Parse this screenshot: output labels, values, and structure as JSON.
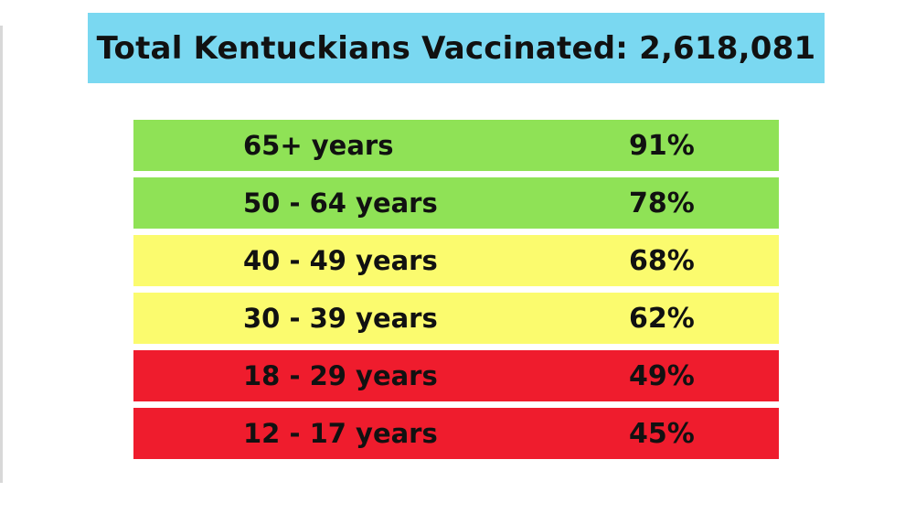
{
  "title": "Total Kentuckians Vaccinated: 2,618,081",
  "colors": {
    "banner": "#7ad8f1",
    "high": "#8fe256",
    "medium": "#fbfb6e",
    "low": "#ef1c2d"
  },
  "chart_data": {
    "type": "table",
    "title": "Total Kentuckians Vaccinated: 2,618,081",
    "rows": [
      {
        "label": "65+ years",
        "value_text": "91%",
        "value": 91,
        "status": "high"
      },
      {
        "label": "50 - 64 years",
        "value_text": "78%",
        "value": 78,
        "status": "high"
      },
      {
        "label": "40 - 49 years",
        "value_text": "68%",
        "value": 68,
        "status": "medium"
      },
      {
        "label": "30 - 39 years",
        "value_text": "62%",
        "value": 62,
        "status": "medium"
      },
      {
        "label": "18 - 29 years",
        "value_text": "49%",
        "value": 49,
        "status": "low"
      },
      {
        "label": "12 - 17 years",
        "value_text": "45%",
        "value": 45,
        "status": "low"
      }
    ]
  }
}
